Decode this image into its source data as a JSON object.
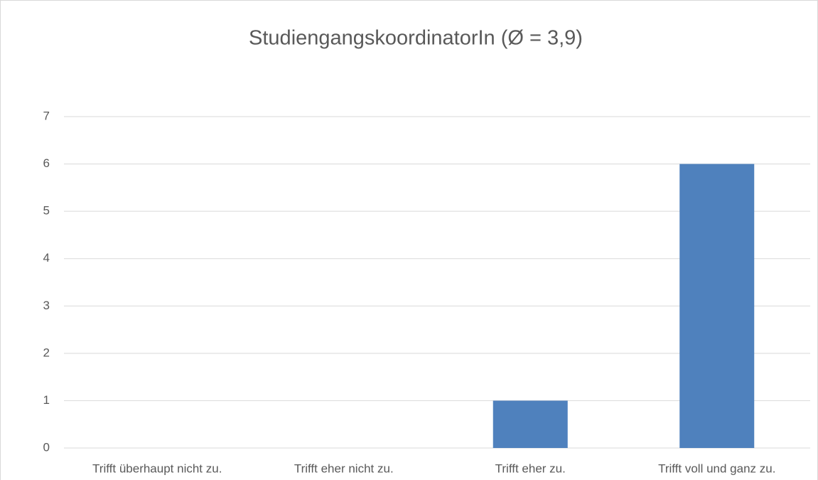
{
  "chart_data": {
    "type": "bar",
    "title": "StudiengangskoordinatorIn (Ø = 3,9)",
    "categories": [
      "Trifft überhaupt nicht zu.",
      "Trifft eher nicht zu.",
      "Trifft eher zu.",
      "Trifft voll und ganz zu."
    ],
    "values": [
      0,
      0,
      1,
      6
    ],
    "color": "#4f81bd",
    "ylim": [
      0,
      7
    ],
    "yticks": [
      0,
      1,
      2,
      3,
      4,
      5,
      6,
      7
    ],
    "grid": true
  }
}
